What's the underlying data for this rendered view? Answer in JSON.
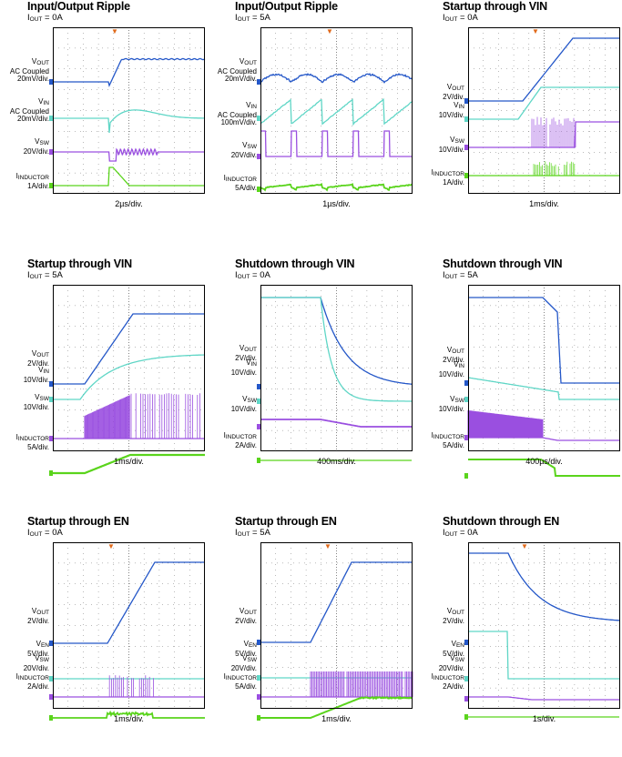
{
  "colors": {
    "vout": "#2457c8",
    "vin": "#5fd6c6",
    "vsw": "#9a4fe0",
    "iind": "#5ad41c",
    "trigger": "#e06a1a",
    "frame": "#000000",
    "grid": "#777777"
  },
  "panels": [
    {
      "title": "Input/Output Ripple",
      "cond_pre": "I",
      "cond_sub": "OUT",
      "cond_post": " = 0A",
      "timebase": "2µs/div.",
      "traces": [
        {
          "sym": "V",
          "sub": "OUT",
          "lines": [
            "AC Coupled",
            "20mV/div."
          ]
        },
        {
          "sym": "V",
          "sub": "IN",
          "lines": [
            "AC Coupled",
            "20mV/div."
          ]
        },
        {
          "sym": "V",
          "sub": "SW",
          "lines": [
            "20V/div."
          ]
        },
        {
          "sym": "I",
          "sub": "INDUCTOR",
          "lines": [
            "1A/div."
          ]
        }
      ]
    },
    {
      "title": "Input/Output Ripple",
      "cond_pre": "I",
      "cond_sub": "OUT",
      "cond_post": " = 5A",
      "timebase": "1µs/div.",
      "traces": [
        {
          "sym": "V",
          "sub": "OUT",
          "lines": [
            "AC Coupled",
            "20mV/div."
          ]
        },
        {
          "sym": "V",
          "sub": "IN",
          "lines": [
            "AC Coupled",
            "100mV/div."
          ]
        },
        {
          "sym": "V",
          "sub": "SW",
          "lines": [
            "20V/div."
          ]
        },
        {
          "sym": "I",
          "sub": "INDUCTOR",
          "lines": [
            "5A/div."
          ]
        }
      ]
    },
    {
      "title": "Startup through VIN",
      "cond_pre": "I",
      "cond_sub": "OUT",
      "cond_post": " = 0A",
      "timebase": "1ms/div.",
      "traces": [
        {
          "sym": "V",
          "sub": "OUT",
          "lines": [
            "2V/div."
          ]
        },
        {
          "sym": "V",
          "sub": "IN",
          "lines": [
            "10V/div."
          ]
        },
        {
          "sym": "V",
          "sub": "SW",
          "lines": [
            "10V/div."
          ]
        },
        {
          "sym": "I",
          "sub": "INDUCTOR",
          "lines": [
            "1A/div."
          ]
        }
      ]
    },
    {
      "title": "Startup through VIN",
      "cond_pre": "I",
      "cond_sub": "OUT",
      "cond_post": " = 5A",
      "timebase": "1ms/div.",
      "traces": [
        {
          "sym": "V",
          "sub": "OUT",
          "lines": [
            "2V/div."
          ]
        },
        {
          "sym": "V",
          "sub": "IN",
          "lines": [
            "10V/div."
          ]
        },
        {
          "sym": "V",
          "sub": "SW",
          "lines": [
            "10V/div."
          ]
        },
        {
          "sym": "I",
          "sub": "INDUCTOR",
          "lines": [
            "5A/div."
          ]
        }
      ]
    },
    {
      "title": "Shutdown through VIN",
      "cond_pre": "I",
      "cond_sub": "OUT",
      "cond_post": " = 0A",
      "timebase": "400ms/div.",
      "traces": [
        {
          "sym": "V",
          "sub": "OUT",
          "lines": [
            "2V/div."
          ]
        },
        {
          "sym": "V",
          "sub": "IN",
          "lines": [
            "10V/div."
          ]
        },
        {
          "sym": "V",
          "sub": "SW",
          "lines": [
            "10V/div."
          ]
        },
        {
          "sym": "I",
          "sub": "INDUCTOR",
          "lines": [
            "2A/div."
          ]
        }
      ]
    },
    {
      "title": "Shutdown through VIN",
      "cond_pre": "I",
      "cond_sub": "OUT",
      "cond_post": " = 5A",
      "timebase": "400µs/div.",
      "traces": [
        {
          "sym": "V",
          "sub": "OUT",
          "lines": [
            "2V/div."
          ]
        },
        {
          "sym": "V",
          "sub": "IN",
          "lines": [
            "10V/div."
          ]
        },
        {
          "sym": "V",
          "sub": "SW",
          "lines": [
            "10V/div."
          ]
        },
        {
          "sym": "I",
          "sub": "INDUCTOR",
          "lines": [
            "5A/div."
          ]
        }
      ]
    },
    {
      "title": "Startup through EN",
      "cond_pre": "I",
      "cond_sub": "OUT",
      "cond_post": " = 0A",
      "timebase": "1ms/div.",
      "traces": [
        {
          "sym": "V",
          "sub": "OUT",
          "lines": [
            "2V/div."
          ]
        },
        {
          "sym": "V",
          "sub": "EN",
          "lines": [
            "5V/div."
          ]
        },
        {
          "sym": "V",
          "sub": "SW",
          "lines": [
            "20V/div."
          ]
        },
        {
          "sym": "I",
          "sub": "INDUCTOR",
          "lines": [
            "2A/div."
          ]
        }
      ]
    },
    {
      "title": "Startup through EN",
      "cond_pre": "I",
      "cond_sub": "OUT",
      "cond_post": " = 5A",
      "timebase": "1ms/div.",
      "traces": [
        {
          "sym": "V",
          "sub": "OUT",
          "lines": [
            "2V/div."
          ]
        },
        {
          "sym": "V",
          "sub": "EN",
          "lines": [
            "5V/div."
          ]
        },
        {
          "sym": "V",
          "sub": "SW",
          "lines": [
            "20V/div."
          ]
        },
        {
          "sym": "I",
          "sub": "INDUCTOR",
          "lines": [
            "5A/div."
          ]
        }
      ]
    },
    {
      "title": "Shutdown through EN",
      "cond_pre": "I",
      "cond_sub": "OUT",
      "cond_post": " = 0A",
      "timebase": "1s/div.",
      "traces": [
        {
          "sym": "V",
          "sub": "OUT",
          "lines": [
            "2V/div."
          ]
        },
        {
          "sym": "V",
          "sub": "EN",
          "lines": [
            "5V/div."
          ]
        },
        {
          "sym": "V",
          "sub": "SW",
          "lines": [
            "20V/div."
          ]
        },
        {
          "sym": "I",
          "sub": "INDUCTOR",
          "lines": [
            "2A/div."
          ]
        }
      ]
    }
  ]
}
